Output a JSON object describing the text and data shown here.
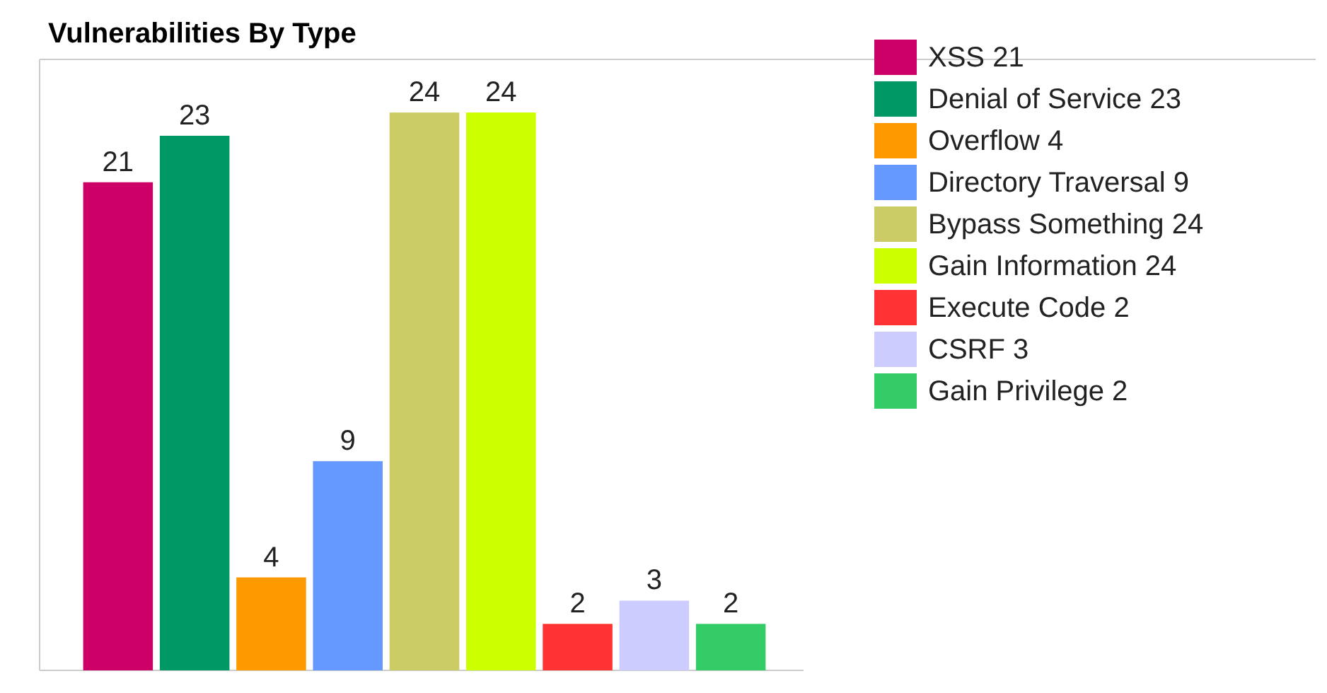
{
  "chart_data": {
    "type": "bar",
    "title": "Vulnerabilities By Type",
    "categories": [
      null
    ],
    "data_labels": true,
    "legend": "right",
    "grid": false,
    "series": [
      {
        "name": "XSS 21",
        "color": "#cc0066",
        "values": [
          21
        ]
      },
      {
        "name": "Denial of Service 23",
        "color": "#009966",
        "values": [
          23
        ]
      },
      {
        "name": "Overflow 4",
        "color": "#ff9900",
        "values": [
          4
        ]
      },
      {
        "name": "Directory Traversal 9",
        "color": "#6699ff",
        "values": [
          9
        ]
      },
      {
        "name": "Bypass Something 24",
        "color": "#cccc66",
        "values": [
          24
        ]
      },
      {
        "name": "Gain Information 24",
        "color": "#ccff00",
        "values": [
          24
        ]
      },
      {
        "name": "Execute Code 2",
        "color": "#ff3333",
        "values": [
          2
        ]
      },
      {
        "name": "CSRF 3",
        "color": "#ccccff",
        "values": [
          3
        ]
      },
      {
        "name": "Gain Privilege 2",
        "color": "#33cc66",
        "values": [
          2
        ]
      }
    ]
  }
}
